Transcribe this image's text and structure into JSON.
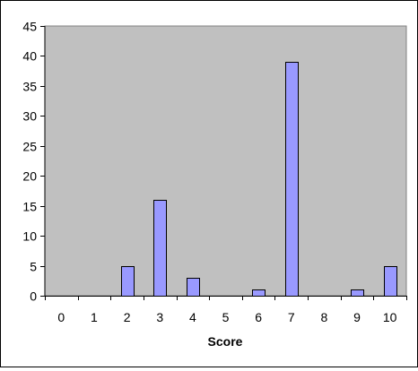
{
  "chart_data": {
    "type": "bar",
    "title": "",
    "xlabel": "Score",
    "ylabel": "",
    "categories": [
      "0",
      "1",
      "2",
      "3",
      "4",
      "5",
      "6",
      "7",
      "8",
      "9",
      "10"
    ],
    "values": [
      0,
      0,
      5,
      16,
      3,
      0,
      1,
      39,
      0,
      1,
      5
    ],
    "ylim": [
      0,
      45
    ],
    "yticks": [
      "0",
      "5",
      "10",
      "15",
      "20",
      "25",
      "30",
      "35",
      "40",
      "45"
    ],
    "grid": false,
    "legend": "none",
    "colors": {
      "plot_background": "#c0c0c0",
      "bar_fill": "#9999ff",
      "bar_stroke": "#000000"
    }
  }
}
